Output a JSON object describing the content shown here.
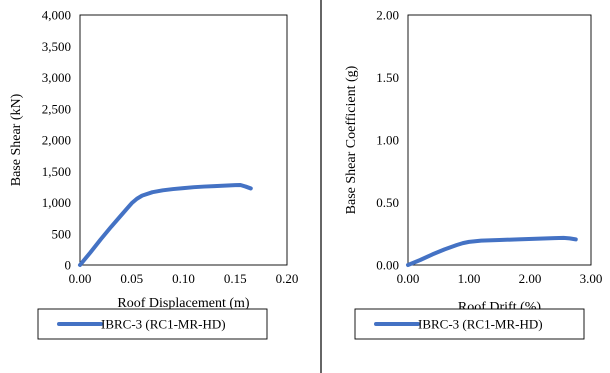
{
  "chart_data": [
    {
      "type": "line",
      "xlabel": "Roof Displacement (m)",
      "ylabel": "Base Shear (kN)",
      "xlim": [
        0,
        0.2
      ],
      "ylim": [
        0,
        4000
      ],
      "x_ticks": [
        "0.00",
        "0.05",
        "0.10",
        "0.15",
        "0.20"
      ],
      "y_ticks": [
        "0",
        "500",
        "1,000",
        "1,500",
        "2,000",
        "2,500",
        "3,000",
        "3,500",
        "4,000"
      ],
      "grid": false,
      "legend_position": "bottom",
      "series": [
        {
          "name": "IBRC-3 (RC1-MR-HD)",
          "color": "#4472C4",
          "x": [
            0,
            0.01,
            0.02,
            0.03,
            0.04,
            0.05,
            0.055,
            0.06,
            0.07,
            0.08,
            0.09,
            0.1,
            0.11,
            0.12,
            0.13,
            0.14,
            0.15,
            0.155,
            0.16,
            0.165
          ],
          "y": [
            0,
            200,
            410,
            610,
            800,
            990,
            1060,
            1110,
            1165,
            1195,
            1215,
            1230,
            1245,
            1255,
            1262,
            1270,
            1278,
            1280,
            1255,
            1225
          ]
        }
      ]
    },
    {
      "type": "line",
      "xlabel": "Roof Drift (%)",
      "ylabel": "Base Shear Coefficient  (g)",
      "xlim": [
        0,
        3
      ],
      "ylim": [
        0,
        2
      ],
      "x_ticks": [
        "0.00",
        "1.00",
        "2.00",
        "3.00"
      ],
      "y_ticks": [
        "0.00",
        "0.50",
        "1.00",
        "1.50",
        "2.00"
      ],
      "grid": false,
      "legend_position": "bottom",
      "series": [
        {
          "name": "IBRC-3 (RC1-MR-HD)",
          "color": "#4472C4",
          "x": [
            0,
            0.2,
            0.4,
            0.6,
            0.8,
            0.9,
            1.0,
            1.2,
            1.5,
            1.8,
            2.1,
            2.4,
            2.55,
            2.65,
            2.75
          ],
          "y": [
            0,
            0.04,
            0.085,
            0.125,
            0.16,
            0.175,
            0.185,
            0.195,
            0.2,
            0.205,
            0.21,
            0.215,
            0.217,
            0.213,
            0.205
          ]
        }
      ]
    }
  ]
}
